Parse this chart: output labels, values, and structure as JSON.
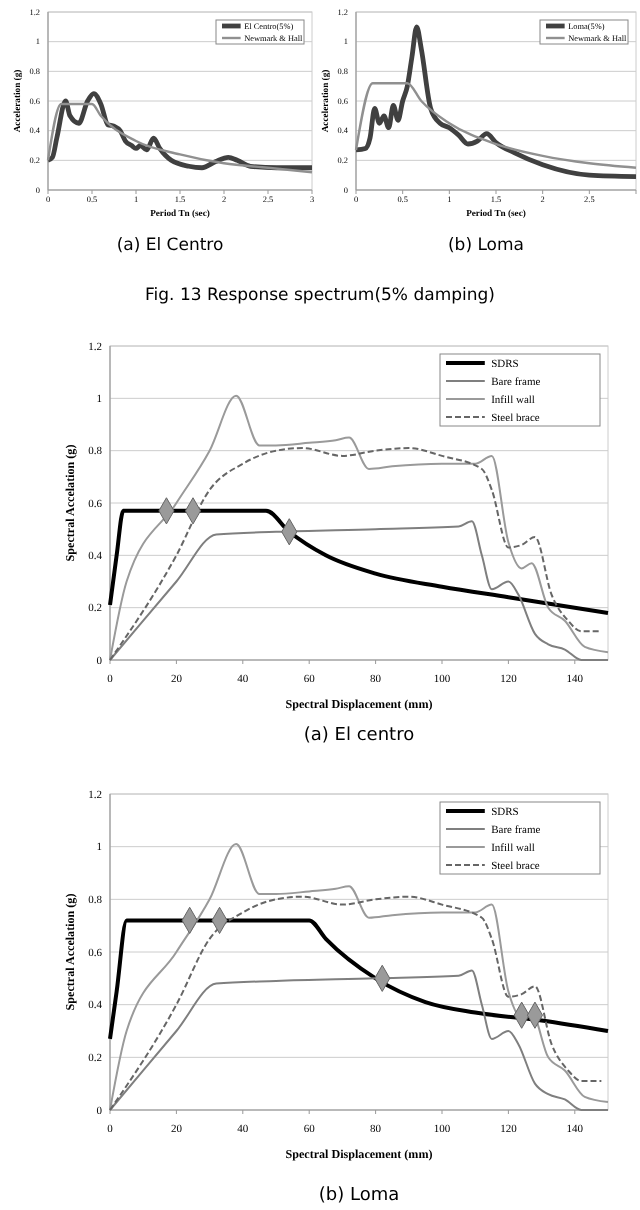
{
  "chart_data": [
    {
      "type": "line",
      "title": "(a) El Centro",
      "xlabel": "Period Tn (sec)",
      "ylabel": "Acceleration (g)",
      "xlim": [
        0,
        3
      ],
      "xticks": [
        0,
        0.5,
        1,
        1.5,
        2,
        2.5,
        3
      ],
      "ylim": [
        0,
        1.2
      ],
      "yticks": [
        0,
        0.2,
        0.4,
        0.6,
        0.8,
        1,
        1.2
      ],
      "grid": "y",
      "legend": "top right",
      "annotations": [
        "Fig. 13 Response spectrum(5% damping)"
      ],
      "series": [
        {
          "name": "El Centro(5%)",
          "color": "#404040",
          "line_style": "solid",
          "x": [
            0,
            0.05,
            0.1,
            0.2,
            0.25,
            0.35,
            0.45,
            0.52,
            0.6,
            0.68,
            0.75,
            0.82,
            0.88,
            0.95,
            1,
            1.05,
            1.12,
            1.2,
            1.27,
            1.4,
            1.6,
            1.75,
            1.9,
            2.05,
            2.15,
            2.3,
            2.6,
            3
          ],
          "values": [
            0.2,
            0.22,
            0.35,
            0.6,
            0.5,
            0.45,
            0.6,
            0.65,
            0.58,
            0.44,
            0.43,
            0.4,
            0.33,
            0.3,
            0.28,
            0.3,
            0.27,
            0.35,
            0.28,
            0.2,
            0.16,
            0.15,
            0.19,
            0.22,
            0.2,
            0.16,
            0.15,
            0.15
          ]
        },
        {
          "name": "Newmark & Hall",
          "color": "#909090",
          "line_style": "solid",
          "x": [
            0,
            0.15,
            0.5,
            0.6,
            1,
            1.5,
            2,
            2.5,
            3
          ],
          "values": [
            0.2,
            0.58,
            0.58,
            0.5,
            0.33,
            0.24,
            0.18,
            0.15,
            0.12
          ]
        }
      ]
    },
    {
      "type": "line",
      "title": "(b) Loma",
      "xlabel": "Period Tn (sec)",
      "ylabel": "Acceleration (g)",
      "xlim": [
        0,
        3
      ],
      "xticks": [
        0,
        0.5,
        1,
        1.5,
        2,
        2.5,
        {
          "value": 3,
          "label": null
        }
      ],
      "ylim": [
        0,
        1.2
      ],
      "yticks": [
        0,
        0.2,
        0.4,
        0.6,
        0.8,
        1,
        1.2
      ],
      "grid": "y",
      "legend": "top right",
      "series": [
        {
          "name": "Loma(5%)",
          "color": "#404040",
          "line_style": "solid",
          "x": [
            0,
            0.1,
            0.15,
            0.2,
            0.25,
            0.3,
            0.35,
            0.4,
            0.45,
            0.5,
            0.55,
            0.6,
            0.65,
            0.7,
            0.8,
            0.9,
            1,
            1.1,
            1.2,
            1.3,
            1.4,
            1.5,
            1.7,
            2,
            2.5,
            3
          ],
          "values": [
            0.27,
            0.28,
            0.35,
            0.55,
            0.45,
            0.5,
            0.42,
            0.57,
            0.47,
            0.6,
            0.7,
            0.9,
            1.1,
            0.95,
            0.55,
            0.45,
            0.42,
            0.37,
            0.31,
            0.33,
            0.38,
            0.32,
            0.25,
            0.17,
            0.1,
            0.09
          ]
        },
        {
          "name": "Newmark & Hall",
          "color": "#909090",
          "line_style": "solid",
          "x": [
            0,
            0.18,
            0.55,
            0.7,
            1,
            1.5,
            2,
            2.5,
            3
          ],
          "values": [
            0.27,
            0.72,
            0.72,
            0.6,
            0.45,
            0.31,
            0.23,
            0.18,
            0.15
          ]
        }
      ]
    },
    {
      "type": "line",
      "title": "(a) El centro",
      "xlabel": "Spectral Displacement (mm)",
      "ylabel": "Spectral Accelation (g)",
      "xlim": [
        0,
        150
      ],
      "xticks": [
        0,
        20,
        40,
        60,
        80,
        100,
        120,
        140
      ],
      "ylim": [
        0,
        1.2
      ],
      "yticks": [
        0,
        0.2,
        0.4,
        0.6,
        0.8,
        1,
        1.2
      ],
      "grid": "y",
      "legend": "top right",
      "series": [
        {
          "name": "SDRS",
          "color": "#000000",
          "line_style": "solid",
          "x": [
            0,
            2,
            4,
            47,
            54,
            65,
            80,
            100,
            120,
            150
          ],
          "values": [
            0.21,
            0.4,
            0.57,
            0.57,
            0.49,
            0.4,
            0.33,
            0.28,
            0.24,
            0.18
          ]
        },
        {
          "name": "Bare frame",
          "color": "#7f7f7f",
          "line_style": "solid",
          "x": [
            0,
            20,
            32,
            50,
            80,
            105,
            109,
            112,
            115,
            120,
            123,
            128,
            132,
            137,
            142,
            150
          ],
          "values": [
            0,
            0.3,
            0.48,
            0.49,
            0.5,
            0.51,
            0.53,
            0.4,
            0.27,
            0.3,
            0.25,
            0.1,
            0.06,
            0.04,
            0,
            0
          ]
        },
        {
          "name": "Infill wall",
          "color": "#9a9a9a",
          "line_style": "solid",
          "x": [
            0,
            5,
            20,
            30,
            38,
            45,
            50,
            60,
            68,
            72,
            78,
            85,
            100,
            110,
            115,
            120,
            124,
            127,
            132,
            137,
            143,
            150
          ],
          "values": [
            0,
            0.3,
            0.6,
            0.8,
            1.01,
            0.82,
            0.82,
            0.83,
            0.84,
            0.85,
            0.73,
            0.74,
            0.75,
            0.75,
            0.78,
            0.45,
            0.35,
            0.37,
            0.2,
            0.15,
            0.05,
            0.03
          ]
        },
        {
          "name": "Steel brace",
          "color": "#666666",
          "line_style": "dashed",
          "x": [
            0,
            20,
            30,
            40,
            50,
            58,
            70,
            80,
            90,
            100,
            112,
            115,
            120,
            124,
            128,
            133,
            138,
            142,
            148
          ],
          "values": [
            0,
            0.4,
            0.65,
            0.75,
            0.8,
            0.81,
            0.78,
            0.8,
            0.81,
            0.78,
            0.73,
            0.65,
            0.43,
            0.44,
            0.47,
            0.25,
            0.15,
            0.11,
            0.11
          ]
        },
        {
          "type": "scatter",
          "color": "#9a9a9a",
          "marker": "diamond",
          "x": [
            17,
            25,
            54
          ],
          "values": [
            0.57,
            0.57,
            0.49
          ]
        }
      ]
    },
    {
      "type": "line",
      "title": "(b) Loma",
      "xlabel": "Spectral Displacement (mm)",
      "ylabel": "Spectral Accelation (g)",
      "xlim": [
        0,
        150
      ],
      "xticks": [
        0,
        20,
        40,
        60,
        80,
        100,
        120,
        140
      ],
      "ylim": [
        0,
        1.2
      ],
      "yticks": [
        0,
        0.2,
        0.4,
        0.6,
        0.8,
        1,
        1.2
      ],
      "grid": "y",
      "legend": "top right",
      "series": [
        {
          "name": "SDRS",
          "color": "#000000",
          "line_style": "solid",
          "x": [
            0,
            2,
            5,
            60,
            65,
            80,
            95,
            110,
            130,
            150
          ],
          "values": [
            0.27,
            0.45,
            0.72,
            0.72,
            0.65,
            0.5,
            0.41,
            0.37,
            0.34,
            0.3
          ]
        },
        {
          "name": "Bare frame",
          "color": "#7f7f7f",
          "line_style": "solid",
          "x": [
            0,
            20,
            32,
            50,
            80,
            105,
            109,
            112,
            115,
            120,
            123,
            128,
            132,
            137,
            142,
            150
          ],
          "values": [
            0,
            0.3,
            0.48,
            0.49,
            0.5,
            0.51,
            0.53,
            0.4,
            0.27,
            0.3,
            0.25,
            0.1,
            0.06,
            0.04,
            0,
            0
          ]
        },
        {
          "name": "Infill wall",
          "color": "#9a9a9a",
          "line_style": "solid",
          "x": [
            0,
            5,
            20,
            30,
            38,
            45,
            50,
            60,
            68,
            72,
            78,
            85,
            100,
            110,
            115,
            120,
            124,
            127,
            132,
            137,
            143,
            150
          ],
          "values": [
            0,
            0.3,
            0.6,
            0.8,
            1.01,
            0.82,
            0.82,
            0.83,
            0.84,
            0.85,
            0.73,
            0.74,
            0.75,
            0.75,
            0.78,
            0.45,
            0.35,
            0.37,
            0.2,
            0.15,
            0.05,
            0.03
          ]
        },
        {
          "name": "Steel brace",
          "color": "#666666",
          "line_style": "dashed",
          "x": [
            0,
            20,
            30,
            40,
            50,
            58,
            70,
            80,
            90,
            100,
            112,
            115,
            120,
            124,
            128,
            133,
            138,
            142,
            148
          ],
          "values": [
            0,
            0.4,
            0.65,
            0.75,
            0.8,
            0.81,
            0.78,
            0.8,
            0.81,
            0.78,
            0.73,
            0.65,
            0.43,
            0.44,
            0.47,
            0.25,
            0.15,
            0.11,
            0.11
          ]
        },
        {
          "type": "scatter",
          "color": "#9a9a9a",
          "marker": "diamond",
          "x": [
            24,
            33,
            82,
            124,
            128
          ],
          "values": [
            0.72,
            0.72,
            0.5,
            0.36,
            0.36
          ]
        }
      ]
    }
  ]
}
